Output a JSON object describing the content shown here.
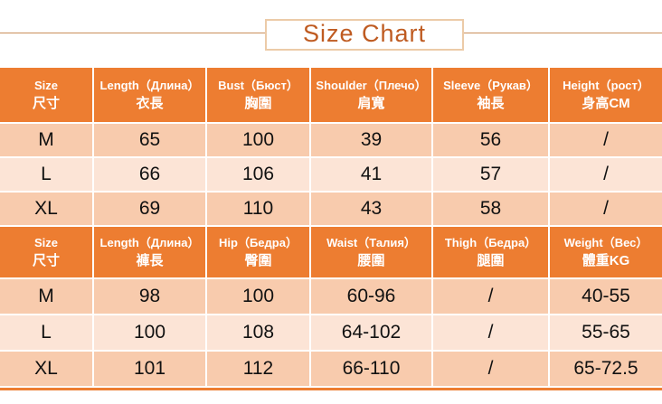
{
  "title": "Size Chart",
  "colors": {
    "header_bg": "#ED7D31",
    "row_dark": "#F8CBAD",
    "row_light": "#FCE4D6",
    "header_text": "#FFFFFF",
    "cell_text": "#111111",
    "title_text": "#BF5B21",
    "title_box_border": "#ECCBA8",
    "divider_line": "#C98E5A"
  },
  "chart_data": [
    {
      "type": "table",
      "title": "Size Chart (top garment)",
      "columns": [
        {
          "label": "Size",
          "sub": "尺寸"
        },
        {
          "label": "Length（Длина）",
          "sub": "衣長"
        },
        {
          "label": "Bust（Бюст）",
          "sub": "胸圍"
        },
        {
          "label": "Shoulder（Плечо）",
          "sub": "肩寬"
        },
        {
          "label": "Sleeve（Рукав）",
          "sub": "袖長"
        },
        {
          "label": "Height（рост）",
          "sub": "身高CM"
        }
      ],
      "rows": [
        [
          "M",
          "65",
          "100",
          "39",
          "56",
          "/"
        ],
        [
          "L",
          "66",
          "106",
          "41",
          "57",
          "/"
        ],
        [
          "XL",
          "69",
          "110",
          "43",
          "58",
          "/"
        ]
      ]
    },
    {
      "type": "table",
      "title": "Size Chart (pants)",
      "columns": [
        {
          "label": "Size",
          "sub": "尺寸"
        },
        {
          "label": "Length（Длина）",
          "sub": "褲長"
        },
        {
          "label": "Hip（Бедра）",
          "sub": "臀圍"
        },
        {
          "label": "Waist（Талия）",
          "sub": "腰圍"
        },
        {
          "label": "Thigh（Бедра）",
          "sub": "腿圍"
        },
        {
          "label": "Weight（Вес）",
          "sub": "體重KG"
        }
      ],
      "rows": [
        [
          "M",
          "98",
          "100",
          "60-96",
          "/",
          "40-55"
        ],
        [
          "L",
          "100",
          "108",
          "64-102",
          "/",
          "55-65"
        ],
        [
          "XL",
          "101",
          "112",
          "66-110",
          "/",
          "65-72.5"
        ]
      ]
    }
  ]
}
